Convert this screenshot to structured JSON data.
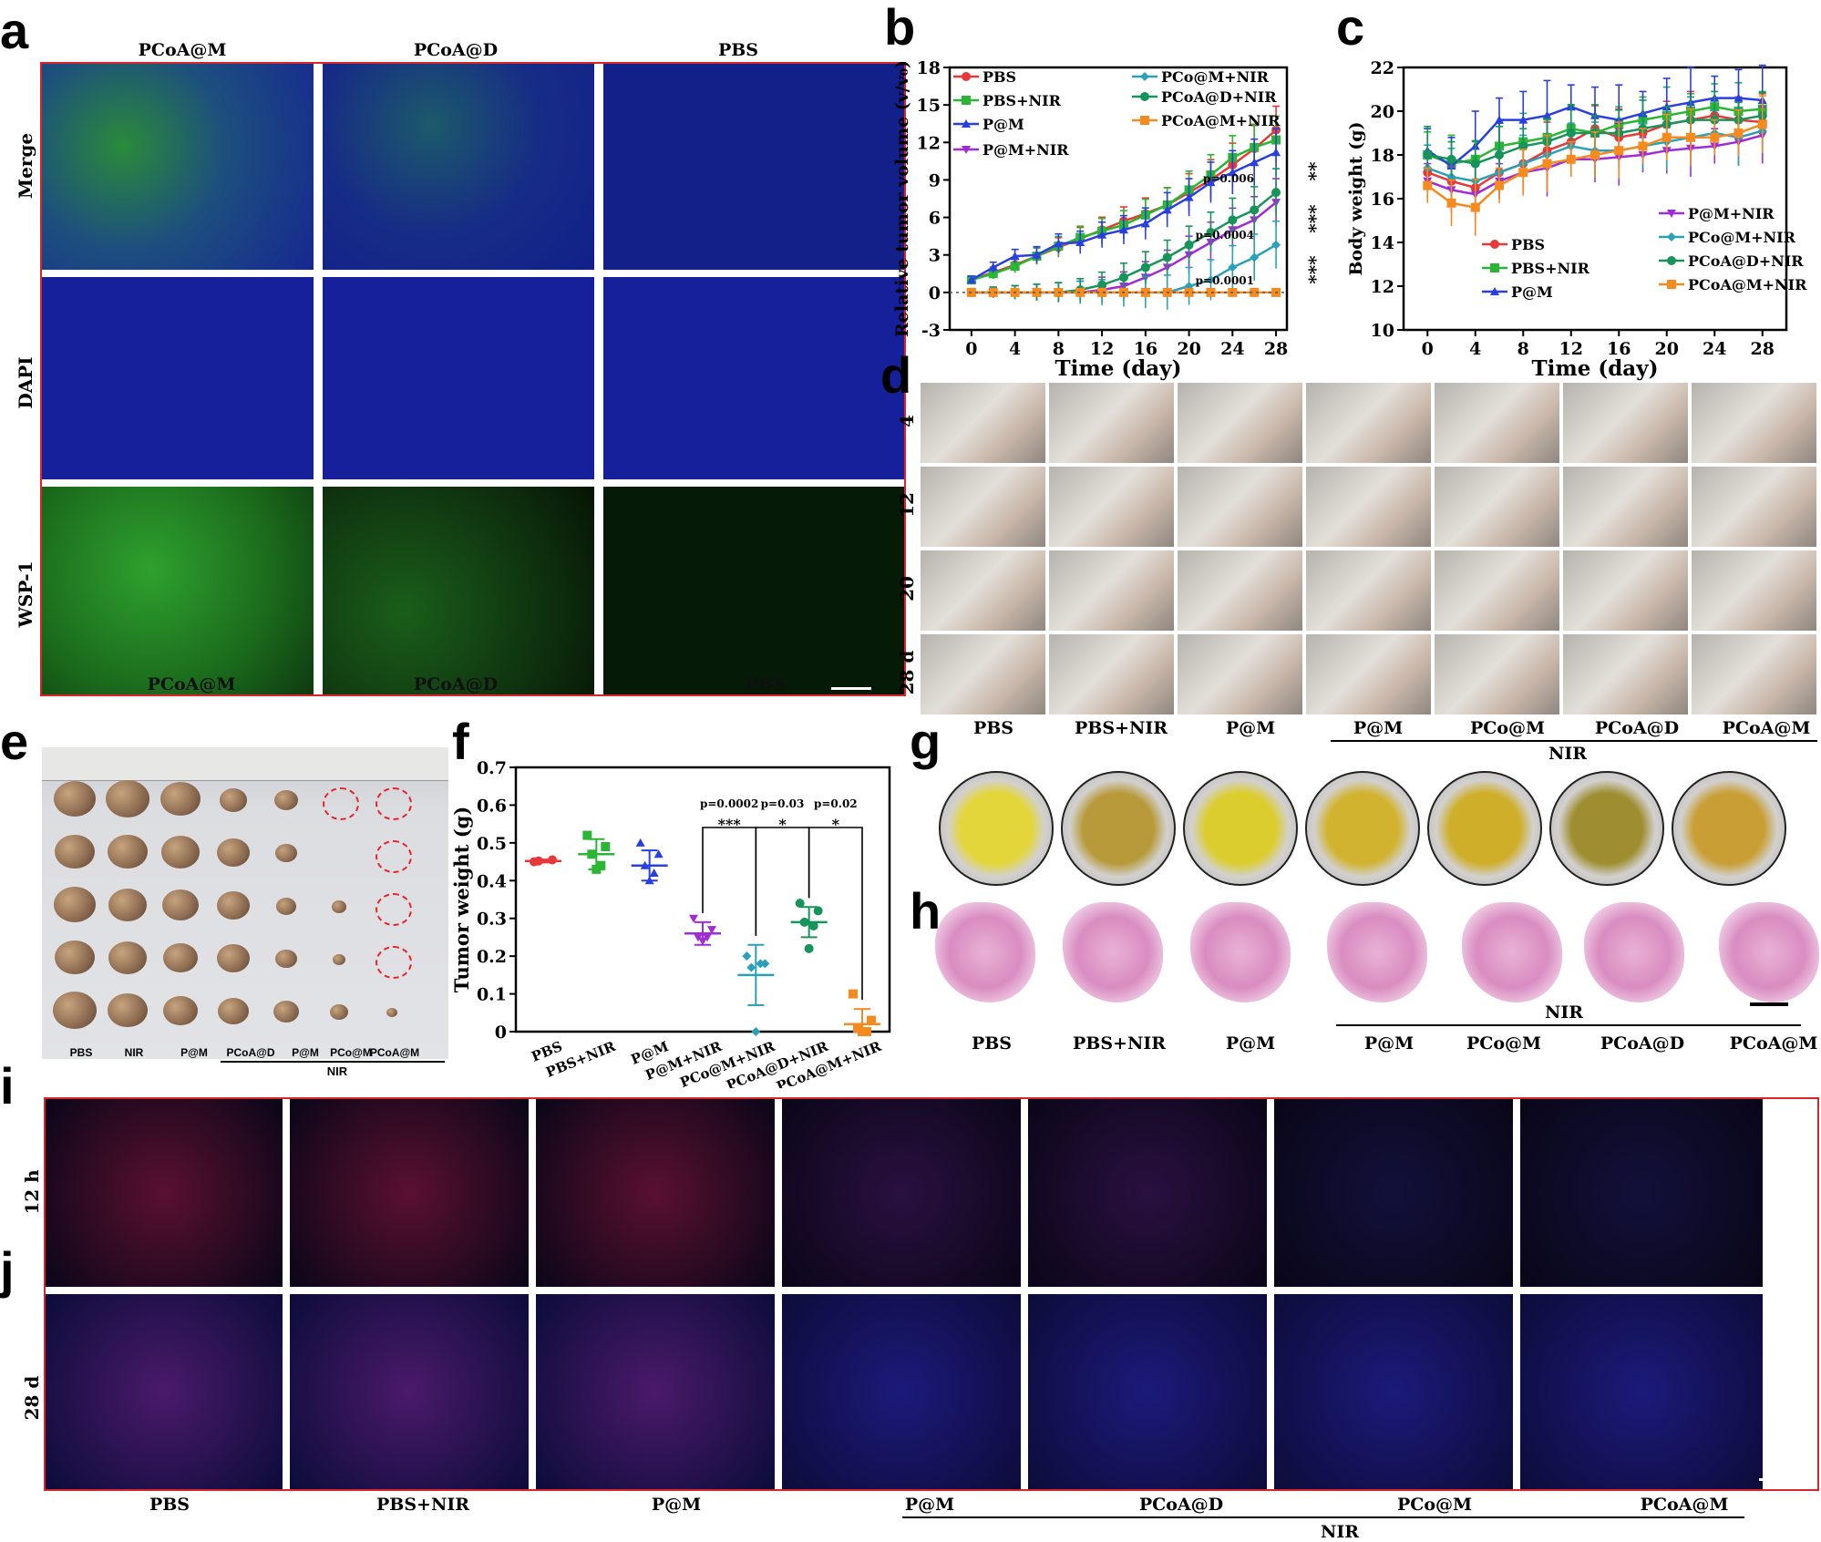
{
  "panel_a": {
    "letter": "a",
    "columns": [
      "PCoA@M",
      "PCoA@D",
      "PBS"
    ],
    "rows": [
      "Merge",
      "DAPI",
      "WSP-1"
    ],
    "bottom_labels": [
      "PCoA@M",
      "PCoA@D",
      "PBS"
    ]
  },
  "panel_d": {
    "letter": "d",
    "rows": [
      "4",
      "12",
      "20",
      "28 d"
    ],
    "columns": [
      "PBS",
      "PBS+NIR",
      "P@M",
      "P@M",
      "PCo@M",
      "PCoA@D",
      "PCoA@M"
    ],
    "group_label": "NIR"
  },
  "panel_e": {
    "letter": "e",
    "labels": [
      "PBS",
      "NIR",
      "P@M",
      "PCoA@D",
      "P@M",
      "PCo@M",
      "PCoA@M"
    ],
    "group_label": "NIR"
  },
  "panel_g": {
    "letter": "g"
  },
  "panel_h": {
    "letter": "h",
    "labels": [
      "PBS",
      "PBS+NIR",
      "P@M",
      "P@M",
      "PCo@M",
      "PCoA@D",
      "PCoA@M"
    ],
    "group_label": "NIR"
  },
  "panel_i": {
    "letter": "i",
    "row_label": "12 h"
  },
  "panel_j": {
    "letter": "j",
    "row_label": "28 d"
  },
  "panel_ij": {
    "labels": [
      "PBS",
      "PBS+NIR",
      "P@M",
      "P@M",
      "PCoA@D",
      "PCo@M",
      "PCoA@M"
    ],
    "group_label": "NIR"
  },
  "chart_data": [
    {
      "id": "b",
      "type": "line",
      "letter": "b",
      "xlabel": "Time (day)",
      "ylabel": "Relative tumor volume (v/v₀)",
      "xlim": [
        -2,
        29
      ],
      "ylim": [
        -3,
        18
      ],
      "xticks": [
        0,
        4,
        8,
        12,
        16,
        20,
        24,
        28
      ],
      "yticks": [
        -3,
        0,
        3,
        6,
        9,
        12,
        15,
        18
      ],
      "x": [
        0,
        2,
        4,
        6,
        8,
        10,
        12,
        14,
        16,
        18,
        20,
        22,
        24,
        26,
        28
      ],
      "series": [
        {
          "name": "PBS",
          "color": "#e8393a",
          "marker": "circle",
          "values": [
            1,
            1.6,
            2.2,
            2.9,
            3.6,
            4.3,
            5.0,
            5.7,
            6.3,
            7.0,
            8.0,
            9.0,
            10.2,
            11.5,
            13.0
          ]
        },
        {
          "name": "PBS+NIR",
          "color": "#2bb534",
          "marker": "square",
          "values": [
            1,
            1.5,
            2.1,
            2.9,
            3.7,
            4.4,
            4.9,
            5.4,
            6.2,
            7.0,
            8.2,
            9.4,
            10.8,
            11.6,
            12.2
          ]
        },
        {
          "name": "P@M",
          "color": "#2a3fe0",
          "marker": "triangle",
          "values": [
            1,
            2.0,
            2.9,
            3.0,
            3.9,
            4.0,
            4.6,
            5.0,
            5.5,
            6.6,
            7.6,
            8.8,
            9.6,
            10.4,
            11.2
          ]
        },
        {
          "name": "P@M+NIR",
          "color": "#a02bd9",
          "marker": "tri-down",
          "values": [
            0,
            0,
            0,
            0,
            0,
            0,
            0.2,
            0.5,
            1.2,
            2.0,
            3.0,
            4.0,
            5.0,
            5.8,
            7.2
          ]
        },
        {
          "name": "PCo@M+NIR",
          "color": "#2aa1b8",
          "marker": "diamond",
          "values": [
            0,
            0,
            0,
            0,
            0,
            0,
            0,
            0,
            0,
            0,
            0.5,
            1.0,
            2.0,
            2.8,
            3.8
          ]
        },
        {
          "name": "PCoA@D+NIR",
          "color": "#17935c",
          "marker": "circle",
          "values": [
            0,
            0,
            0,
            0,
            0,
            0.2,
            0.6,
            1.2,
            2.0,
            2.8,
            3.8,
            4.8,
            5.8,
            6.6,
            8.0
          ]
        },
        {
          "name": "PCoA@M+NIR",
          "color": "#f58a1f",
          "marker": "square",
          "values": [
            0,
            0,
            0,
            0,
            0,
            0,
            0,
            0,
            0,
            0,
            0,
            0,
            0,
            0,
            0
          ]
        }
      ],
      "annotations": [
        "p=0.006",
        "p=0.0004",
        "p=0.0001",
        "**",
        "***",
        "***"
      ]
    },
    {
      "id": "c",
      "type": "line",
      "letter": "c",
      "xlabel": "Time (day)",
      "ylabel": "Body weight (g)",
      "xlim": [
        -2,
        30
      ],
      "ylim": [
        10,
        22
      ],
      "xticks": [
        0,
        4,
        8,
        12,
        16,
        20,
        24,
        28
      ],
      "yticks": [
        10,
        12,
        14,
        16,
        18,
        20,
        22
      ],
      "x": [
        0,
        2,
        4,
        6,
        8,
        10,
        12,
        14,
        16,
        18,
        20,
        22,
        24,
        26,
        28
      ],
      "series": [
        {
          "name": "PBS",
          "color": "#e8393a",
          "marker": "circle",
          "values": [
            17.2,
            16.8,
            16.5,
            17.2,
            17.6,
            18.2,
            18.6,
            19.2,
            18.8,
            19.0,
            19.4,
            19.6,
            19.8,
            19.6,
            19.5
          ]
        },
        {
          "name": "PBS+NIR",
          "color": "#2bb534",
          "marker": "square",
          "values": [
            18.0,
            17.6,
            17.8,
            18.4,
            18.6,
            18.8,
            19.2,
            19.0,
            19.4,
            19.6,
            19.8,
            20.0,
            20.2,
            20.0,
            20.1
          ]
        },
        {
          "name": "P@M",
          "color": "#2a3fe0",
          "marker": "triangle",
          "values": [
            18.2,
            17.5,
            18.4,
            19.6,
            19.6,
            19.8,
            20.2,
            19.8,
            19.6,
            19.9,
            20.2,
            20.4,
            20.6,
            20.6,
            20.5
          ]
        },
        {
          "name": "P@M+NIR",
          "color": "#a02bd9",
          "marker": "tri-down",
          "values": [
            16.8,
            16.4,
            16.2,
            16.8,
            17.2,
            17.4,
            17.8,
            17.8,
            17.9,
            18.0,
            18.2,
            18.3,
            18.4,
            18.6,
            18.9
          ]
        },
        {
          "name": "PCo@M+NIR",
          "color": "#2aa1b8",
          "marker": "diamond",
          "values": [
            17.4,
            17.0,
            16.8,
            17.2,
            17.6,
            18.0,
            18.4,
            18.2,
            18.2,
            18.4,
            18.6,
            18.8,
            19.0,
            18.8,
            19.1
          ]
        },
        {
          "name": "PCoA@D+NIR",
          "color": "#17935c",
          "marker": "circle",
          "values": [
            18.0,
            17.8,
            17.6,
            18.0,
            18.4,
            18.6,
            19.0,
            19.0,
            19.0,
            19.2,
            19.4,
            19.6,
            19.6,
            19.6,
            19.8
          ]
        },
        {
          "name": "PCoA@M+NIR",
          "color": "#f58a1f",
          "marker": "square",
          "values": [
            16.6,
            15.8,
            15.6,
            16.6,
            17.2,
            17.6,
            17.8,
            18.0,
            18.2,
            18.4,
            18.8,
            18.8,
            18.8,
            19.0,
            19.4
          ]
        }
      ]
    },
    {
      "id": "f",
      "type": "scatter",
      "letter": "f",
      "ylabel": "Tumor weight (g)",
      "ylim": [
        0,
        0.7
      ],
      "yticks": [
        0,
        0.1,
        0.2,
        0.3,
        0.4,
        0.5,
        0.6,
        0.7
      ],
      "categories": [
        "PBS",
        "PBS+NIR",
        "P@M",
        "P@M+NIR",
        "PCo@M+NIR",
        "PCoA@D+NIR",
        "PCoA@M+NIR"
      ],
      "series": [
        {
          "name": "PBS",
          "color": "#e8393a",
          "marker": "circle",
          "points": [
            0.45,
            0.455,
            0.452
          ],
          "mean": 0.452,
          "sd": 0.004
        },
        {
          "name": "PBS+NIR",
          "color": "#2bb534",
          "marker": "square",
          "points": [
            0.52,
            0.49,
            0.47,
            0.44,
            0.43
          ],
          "mean": 0.47,
          "sd": 0.04
        },
        {
          "name": "P@M",
          "color": "#2a3fe0",
          "marker": "triangle",
          "points": [
            0.5,
            0.47,
            0.44,
            0.42,
            0.4
          ],
          "mean": 0.44,
          "sd": 0.04
        },
        {
          "name": "P@M+NIR",
          "color": "#a02bd9",
          "marker": "tri-down",
          "points": [
            0.3,
            0.27,
            0.25,
            0.25,
            0.24
          ],
          "mean": 0.26,
          "sd": 0.03
        },
        {
          "name": "PCo@M+NIR",
          "color": "#2aa1b8",
          "marker": "diamond",
          "points": [
            0.2,
            0.18,
            0.17,
            0.18,
            0.0
          ],
          "mean": 0.15,
          "sd": 0.08
        },
        {
          "name": "PCoA@D+NIR",
          "color": "#17935c",
          "marker": "circle",
          "points": [
            0.34,
            0.32,
            0.29,
            0.28,
            0.22
          ],
          "mean": 0.29,
          "sd": 0.04
        },
        {
          "name": "PCoA@M+NIR",
          "color": "#f58a1f",
          "marker": "square",
          "points": [
            0.1,
            0.03,
            0.01,
            0.0,
            0.0
          ],
          "mean": 0.02,
          "sd": 0.04
        }
      ],
      "comparisons": [
        {
          "from": 3,
          "to": 4,
          "p": "p=0.0002",
          "stars": "***"
        },
        {
          "from": 4,
          "to": 5,
          "p": "p=0.03",
          "stars": "*"
        },
        {
          "from": 5,
          "to": 6,
          "p": "p=0.02",
          "stars": "*"
        }
      ]
    }
  ]
}
